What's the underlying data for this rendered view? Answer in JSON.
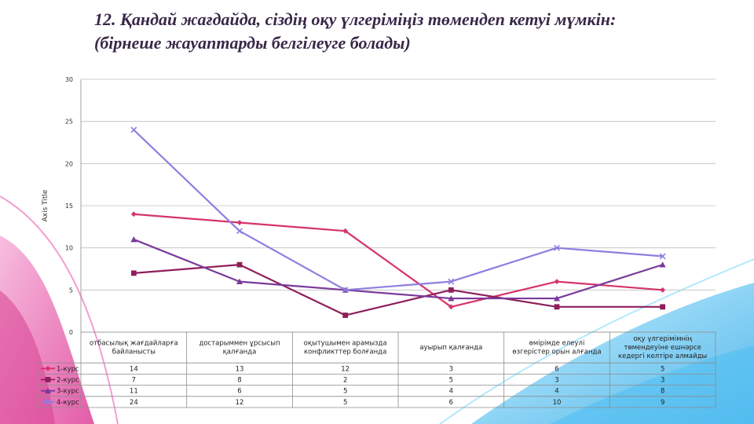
{
  "title": {
    "line1": "12. Қандай жағдайда, сіздің оқу үлгеріміңіз төмендеп кетуі мүмкін:",
    "line2": "(бірнеше жауаптарды белгілеуге болады)"
  },
  "chart_data": {
    "type": "line",
    "ylabel": "Axis Title",
    "ylim": [
      0,
      30
    ],
    "yticks": [
      0,
      5,
      10,
      15,
      20,
      25,
      30
    ],
    "grid": true,
    "legend": "data-table-left",
    "categories": [
      [
        "отбасылық жағдайларға",
        "байланысты"
      ],
      [
        "достарыммен ұрсысып",
        "қалғанда"
      ],
      [
        "оқытушымен арамызда",
        "конфликттер болғанда"
      ],
      [
        "ауырып қалғанда"
      ],
      [
        "өмірімде елеулі",
        "өзгерістер орын алғанда"
      ],
      [
        "оқу үлгерімімнің",
        "төмендеуіне ешнәрсе",
        "кедергі келтіре алмайды"
      ]
    ],
    "series": [
      {
        "name": "1-курс",
        "values": [
          14,
          13,
          12,
          3,
          6,
          5
        ],
        "color": "#d6336c",
        "marker": "diamond"
      },
      {
        "name": "2-курс",
        "values": [
          7,
          8,
          2,
          5,
          3,
          3
        ],
        "color": "#8e1f5a",
        "marker": "square"
      },
      {
        "name": "3-курс",
        "values": [
          11,
          6,
          5,
          4,
          4,
          8
        ],
        "color": "#7a3a9a",
        "marker": "triangle"
      },
      {
        "name": "4-курс",
        "values": [
          24,
          12,
          5,
          6,
          10,
          9
        ],
        "color": "#8e7ee0",
        "marker": "x"
      }
    ]
  }
}
